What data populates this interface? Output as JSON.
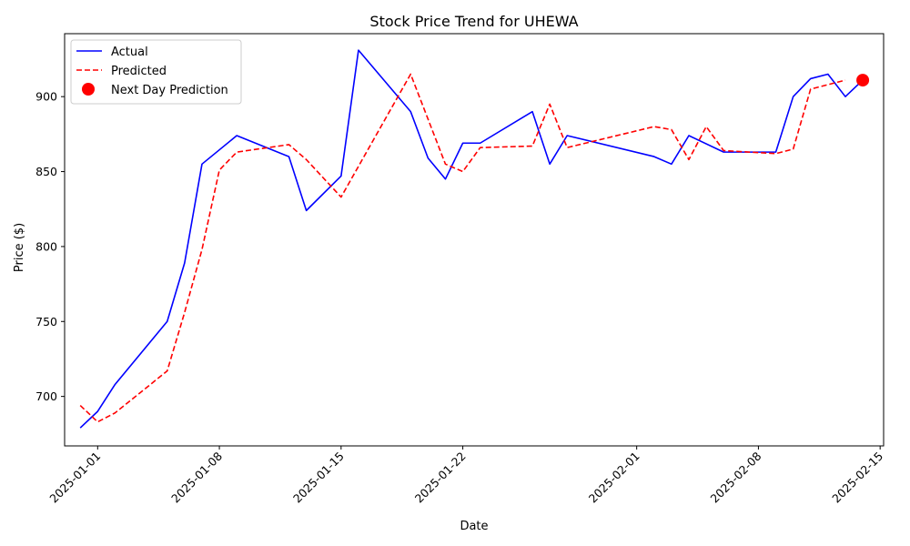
{
  "chart_data": {
    "type": "line",
    "title": "Stock Price Trend for UHEWA",
    "xlabel": "Date",
    "ylabel": "Price ($)",
    "x_type": "date",
    "xlim": [
      "2024-12-30",
      "2025-02-15"
    ],
    "ylim": [
      667,
      942
    ],
    "x_ticks": [
      "2025-01-01",
      "2025-01-08",
      "2025-01-15",
      "2025-01-22",
      "2025-02-01",
      "2025-02-08",
      "2025-02-15"
    ],
    "y_ticks": [
      700,
      750,
      800,
      850,
      900
    ],
    "grid": false,
    "legend_position": "top-left",
    "legend": [
      "Actual",
      "Predicted",
      "Next Day Prediction"
    ],
    "series": [
      {
        "name": "Actual",
        "style": "solid",
        "color": "#0000ff",
        "points": [
          [
            "2024-12-31",
            679
          ],
          [
            "2025-01-01",
            690
          ],
          [
            "2025-01-02",
            708
          ],
          [
            "2025-01-05",
            750
          ],
          [
            "2025-01-06",
            789
          ],
          [
            "2025-01-07",
            855
          ],
          [
            "2025-01-09",
            874
          ],
          [
            "2025-01-12",
            860
          ],
          [
            "2025-01-13",
            824
          ],
          [
            "2025-01-15",
            847
          ],
          [
            "2025-01-16",
            931
          ],
          [
            "2025-01-19",
            890
          ],
          [
            "2025-01-20",
            859
          ],
          [
            "2025-01-21",
            845
          ],
          [
            "2025-01-22",
            869
          ],
          [
            "2025-01-23",
            869
          ],
          [
            "2025-01-26",
            890
          ],
          [
            "2025-01-27",
            855
          ],
          [
            "2025-01-28",
            874
          ],
          [
            "2025-02-02",
            860
          ],
          [
            "2025-02-03",
            855
          ],
          [
            "2025-02-04",
            874
          ],
          [
            "2025-02-06",
            863
          ],
          [
            "2025-02-09",
            863
          ],
          [
            "2025-02-10",
            900
          ],
          [
            "2025-02-11",
            912
          ],
          [
            "2025-02-12",
            915
          ],
          [
            "2025-02-13",
            900
          ],
          [
            "2025-02-14",
            911
          ]
        ]
      },
      {
        "name": "Predicted",
        "style": "dashed",
        "color": "#ff0000",
        "points": [
          [
            "2024-12-31",
            694
          ],
          [
            "2025-01-01",
            683
          ],
          [
            "2025-01-02",
            689
          ],
          [
            "2025-01-05",
            717
          ],
          [
            "2025-01-06",
            756
          ],
          [
            "2025-01-07",
            798
          ],
          [
            "2025-01-08",
            851
          ],
          [
            "2025-01-09",
            863
          ],
          [
            "2025-01-12",
            868
          ],
          [
            "2025-01-13",
            858
          ],
          [
            "2025-01-15",
            833
          ],
          [
            "2025-01-19",
            915
          ],
          [
            "2025-01-21",
            855
          ],
          [
            "2025-01-22",
            850
          ],
          [
            "2025-01-23",
            866
          ],
          [
            "2025-01-26",
            867
          ],
          [
            "2025-01-27",
            895
          ],
          [
            "2025-01-28",
            866
          ],
          [
            "2025-02-02",
            880
          ],
          [
            "2025-02-03",
            878
          ],
          [
            "2025-02-04",
            858
          ],
          [
            "2025-02-05",
            880
          ],
          [
            "2025-02-06",
            864
          ],
          [
            "2025-02-09",
            862
          ],
          [
            "2025-02-10",
            865
          ],
          [
            "2025-02-11",
            905
          ],
          [
            "2025-02-13",
            911
          ]
        ]
      }
    ],
    "next_day_prediction": {
      "name": "Next Day Prediction",
      "color": "#ff0000",
      "x": "2025-02-14",
      "y": 911
    }
  }
}
